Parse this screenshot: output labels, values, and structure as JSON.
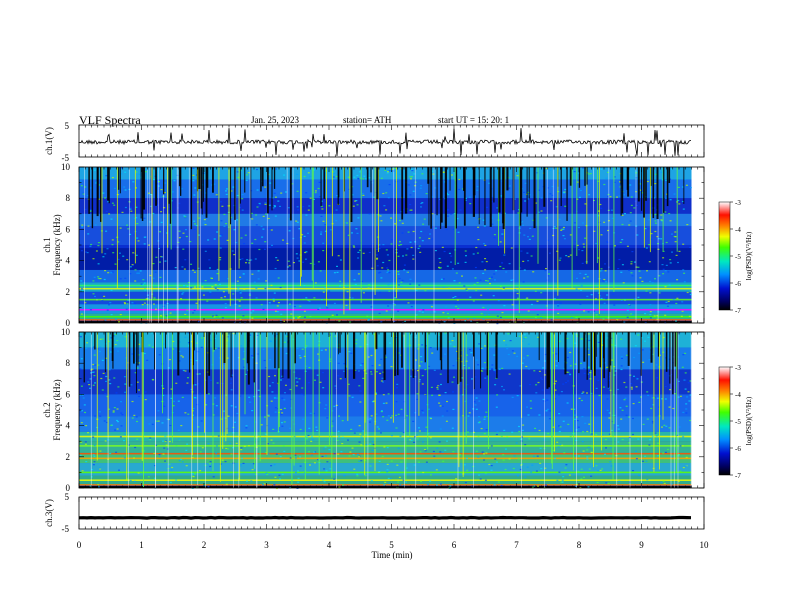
{
  "header": {
    "title": "VLF  Spectra",
    "date": "Jan. 25, 2023",
    "station": "station= ATH",
    "start": "start  UT  =    15: 20: 1"
  },
  "chart_data": [
    {
      "type": "line",
      "name": "ch1-waveform",
      "ylabel": "ch.1(V)",
      "ylim": [
        -5,
        5
      ],
      "y_ticks": [
        "5",
        "-5"
      ],
      "xlim": [
        0,
        10
      ],
      "data_extent_x": [
        0,
        9.8
      ],
      "baseline": 0
    },
    {
      "type": "heatmap",
      "name": "ch1-spectrogram",
      "ylabel": "ch.1\nFrequency (kHz)",
      "ylim": [
        0,
        10
      ],
      "y_ticks": [
        "0",
        "2",
        "4",
        "6",
        "8",
        "10"
      ],
      "xlim": [
        0,
        10
      ],
      "data_extent_x": [
        0,
        9.8
      ],
      "colorbar": {
        "label": "log(PSD)(V²/Hz)",
        "range": [
          -7,
          -3
        ],
        "ticks": [
          "-3",
          "-4",
          "-5",
          "-6",
          "-7"
        ]
      }
    },
    {
      "type": "heatmap",
      "name": "ch2-spectrogram",
      "ylabel": "ch.2\nFrequency (kHz)",
      "ylim": [
        0,
        10
      ],
      "y_ticks": [
        "0",
        "2",
        "4",
        "6",
        "8",
        "10"
      ],
      "xlim": [
        0,
        10
      ],
      "data_extent_x": [
        0,
        9.8
      ],
      "colorbar": {
        "label": "log(PSD)(V²/Hz)",
        "range": [
          -7,
          -3
        ],
        "ticks": [
          "-3",
          "-4",
          "-5",
          "-6",
          "-7"
        ]
      }
    },
    {
      "type": "line",
      "name": "ch3-waveform",
      "ylabel": "ch.3(V)",
      "ylim": [
        -5,
        5
      ],
      "y_ticks": [
        "5",
        "-5"
      ],
      "xlim": [
        0,
        10
      ],
      "data_extent_x": [
        0,
        9.8
      ],
      "baseline": -1.5
    }
  ],
  "x_axis": {
    "label": "Time  (min)",
    "ticks": [
      "0",
      "1",
      "2",
      "3",
      "4",
      "5",
      "6",
      "7",
      "8",
      "9",
      "10"
    ]
  }
}
